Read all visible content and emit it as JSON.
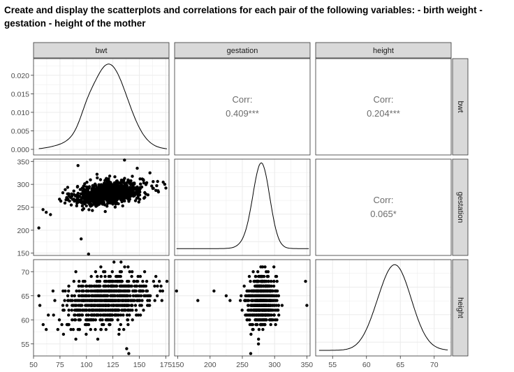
{
  "question": "Create and display the scatterplots and correlations for each pair of the following variables: - birth weight - gestation - height of the mother",
  "chart_data": {
    "type": "scatter",
    "layout": "pairs-matrix",
    "variables": [
      "bwt",
      "gestation",
      "height"
    ],
    "ranges": {
      "bwt": [
        50,
        178
      ],
      "gestation": [
        145,
        355
      ],
      "height": [
        52.5,
        72.5
      ]
    },
    "ticks": {
      "bwt": [
        50,
        75,
        100,
        125,
        150,
        175
      ],
      "gestation": [
        150,
        200,
        250,
        300,
        350
      ],
      "height": [
        55,
        60,
        65,
        70
      ]
    },
    "density_ticks": [
      0.0,
      0.005,
      0.01,
      0.015,
      0.02
    ],
    "density_tick_labels": [
      "0.000",
      "0.005",
      "0.010",
      "0.015",
      "0.020"
    ],
    "density_ylim": [
      0,
      0.0245
    ],
    "densities": {
      "bwt": {
        "mean": 121,
        "sd": 17.5,
        "peak": 0.0233,
        "x_range": [
          55,
          176
        ]
      },
      "gestation": {
        "mean": 279.5,
        "sd": 13.0,
        "peak": 0.031,
        "x_range": [
          148,
          353
        ]
      },
      "height": {
        "mean": 64.2,
        "sd": 2.4,
        "peak": 0.165,
        "x_range": [
          53,
          72
        ]
      }
    },
    "correlations": [
      {
        "row": "bwt",
        "col": "gestation",
        "label": "Corr:",
        "value": "0.409***"
      },
      {
        "row": "bwt",
        "col": "height",
        "label": "Corr:",
        "value": "0.204***"
      },
      {
        "row": "gestation",
        "col": "height",
        "label": "Corr:",
        "value": "0.065*"
      }
    ],
    "outliers": {
      "gestation_vs_bwt": [
        [
          55,
          205
        ],
        [
          59,
          245
        ],
        [
          62,
          239
        ],
        [
          66,
          234
        ],
        [
          95,
          181
        ],
        [
          102,
          148
        ],
        [
          92,
          341
        ],
        [
          110,
          322
        ],
        [
          122,
          318
        ],
        [
          136,
          353
        ],
        [
          148,
          335
        ],
        [
          160,
          325
        ],
        [
          175,
          292
        ],
        [
          174,
          300
        ],
        [
          163,
          306
        ]
      ],
      "height_vs_bwt": [
        [
          55,
          65
        ],
        [
          56,
          63
        ],
        [
          62,
          58
        ],
        [
          138,
          54
        ],
        [
          140,
          53
        ],
        [
          172,
          66
        ],
        [
          176,
          68
        ],
        [
          64,
          61
        ],
        [
          126,
          72
        ],
        [
          155,
          70
        ],
        [
          90,
          70
        ],
        [
          90,
          56
        ]
      ],
      "height_vs_gestation": [
        [
          148,
          66
        ],
        [
          181,
          64
        ],
        [
          206,
          66
        ],
        [
          225,
          65
        ],
        [
          263,
          53
        ],
        [
          275,
          55
        ],
        [
          350,
          63
        ],
        [
          348,
          68
        ],
        [
          231,
          64
        ]
      ]
    },
    "grid": true,
    "strip_label_positions": {
      "columns": "top",
      "rows": "right"
    }
  }
}
